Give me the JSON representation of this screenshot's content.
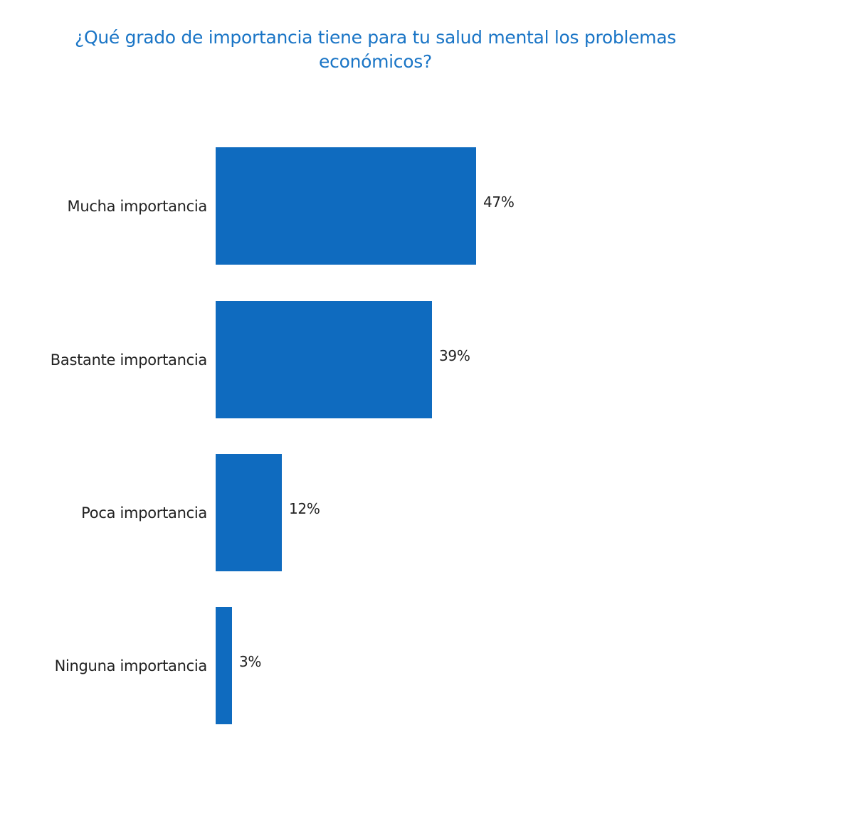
{
  "chart_data": {
    "type": "bar",
    "orientation": "horizontal",
    "title": "¿Qué grado de importancia tiene para tu salud mental los problemas económicos?",
    "categories": [
      "Mucha importancia",
      "Bastante importancia",
      "Poca importancia",
      "Ninguna importancia"
    ],
    "values": [
      47,
      39,
      12,
      3
    ],
    "value_labels": [
      "47%",
      "39%",
      "12%",
      "3%"
    ],
    "unit": "%",
    "xlabel": "",
    "ylabel": "",
    "xlim": [
      0,
      100
    ],
    "grid": false,
    "legend": null,
    "bar_color": "#0F6BBF"
  },
  "title": {
    "line1": "¿Qué grado de importancia tiene para tu salud mental los problemas",
    "line2": "económicos?",
    "color": "#1A75C6"
  },
  "bars": [
    {
      "label": "Mucha importancia",
      "value": 47,
      "value_label": "47%"
    },
    {
      "label": "Bastante importancia",
      "value": 39,
      "value_label": "39%"
    },
    {
      "label": "Poca importancia",
      "value": 12,
      "value_label": "12%"
    },
    {
      "label": "Ninguna importancia",
      "value": 3,
      "value_label": "3%"
    }
  ]
}
